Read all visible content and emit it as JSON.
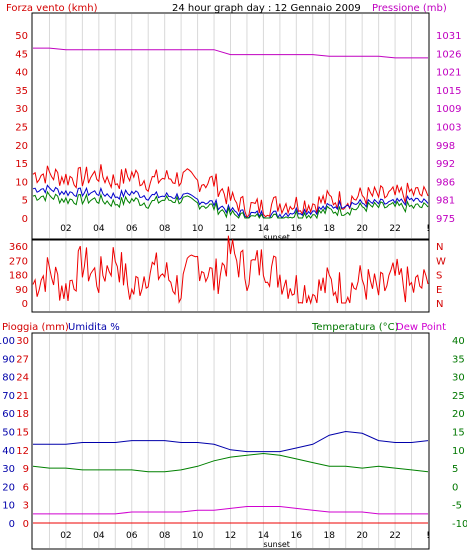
{
  "header": {
    "left_title": "Forza vento (kmh)",
    "center_title": "24 hour graph day : 12 Gennaio 2009",
    "right_title": "Pressione (mb)"
  },
  "x_axis": {
    "tick_labels": [
      "02",
      "04",
      "06",
      "08",
      "10",
      "12",
      "14",
      "16",
      "18",
      "20",
      "22",
      "!"
    ],
    "sunset_label": "sunset"
  },
  "colors": {
    "wind_axis": "#d40000",
    "pressure_axis": "#c000c0",
    "wind_speed": "#ee0000",
    "gust": "#0000cc",
    "avg": "#008000",
    "rain_axis": "#d40000",
    "humidity_axis": "#0000aa",
    "temp_axis": "#007700",
    "dew": "#d000d0",
    "grid": "#d9d9d9"
  },
  "panel_wind": {
    "left_ticks": [
      "50",
      "45",
      "40",
      "35",
      "30",
      "25",
      "20",
      "15",
      "10",
      "5",
      "0"
    ],
    "right_ticks": [
      "1031",
      "1026",
      "1021",
      "1015",
      "1009",
      "1003",
      "998",
      "992",
      "986",
      "981",
      "975"
    ]
  },
  "panel_dir": {
    "left_ticks": [
      "360",
      "270",
      "180",
      "90",
      "0"
    ],
    "right_ticks": [
      "N",
      "W",
      "S",
      "E",
      "N"
    ]
  },
  "panel_temp": {
    "left_label_rain": "Pioggia (mm)",
    "left_label_humidity": "Umidita %",
    "right_label_temp": "Temperatura (°C)",
    "right_label_dew": "Dew Point",
    "rain_ticks": [
      "30",
      "27",
      "24",
      "21",
      "18",
      "15",
      "12",
      "9",
      "6",
      "3",
      "0"
    ],
    "humidity_ticks": [
      "100",
      "90",
      "80",
      "70",
      "60",
      "50",
      "40",
      "30",
      "20",
      "10",
      "0"
    ],
    "temp_ticks": [
      "40",
      "35",
      "30",
      "25",
      "20",
      "15",
      "10",
      "5",
      "0",
      "-5",
      "-10"
    ]
  },
  "chart_data": [
    {
      "type": "line",
      "title": "24 hour graph day : 12 Gennaio 2009",
      "ylabel": "Forza vento (kmh)",
      "y2label": "Pressione (mb)",
      "x_hours": [
        0,
        1,
        2,
        3,
        4,
        5,
        6,
        7,
        8,
        9,
        10,
        11,
        12,
        13,
        14,
        15,
        16,
        17,
        18,
        19,
        20,
        21,
        22,
        23,
        24
      ],
      "ylim": [
        0,
        50
      ],
      "y2lim": [
        975,
        1031
      ],
      "grid": true,
      "series": [
        {
          "axis": "left",
          "values": [
            12,
            12,
            11,
            11,
            12,
            10,
            12,
            10,
            11,
            11,
            10,
            10,
            5,
            3,
            3,
            4,
            4,
            4,
            5,
            5,
            6,
            6,
            6,
            7,
            6
          ]
        },
        {
          "axis": "left",
          "values": [
            8,
            8,
            7,
            7,
            7,
            6,
            7,
            6,
            6,
            6,
            5,
            4,
            2,
            1,
            1,
            1,
            2,
            2,
            3,
            4,
            4,
            4,
            4,
            5,
            4
          ]
        },
        {
          "axis": "left",
          "values": [
            6,
            6,
            5,
            5,
            5,
            4,
            5,
            4,
            5,
            5,
            4,
            3,
            1,
            0,
            0,
            0,
            1,
            1,
            2,
            2,
            3,
            3,
            3,
            3,
            3
          ]
        },
        {
          "axis": "right",
          "values": [
            1027,
            1027,
            1026.5,
            1026.5,
            1026.5,
            1026.5,
            1026.5,
            1026.5,
            1026.5,
            1026.5,
            1026.5,
            1026.5,
            1025,
            1025,
            1025,
            1025,
            1025,
            1025,
            1024.5,
            1024.5,
            1024.5,
            1024.5,
            1024,
            1024,
            1024
          ]
        }
      ]
    },
    {
      "type": "line",
      "ylabel": "",
      "ylim": [
        0,
        360
      ],
      "x_hours": [
        0,
        1,
        2,
        3,
        4,
        5,
        6,
        7,
        8,
        9,
        10,
        11,
        12,
        13,
        14,
        15,
        16,
        17,
        18,
        19,
        20,
        21,
        22,
        23,
        24
      ],
      "series": [
        {
          "values": [
            120,
            200,
            80,
            260,
            150,
            300,
            60,
            220,
            180,
            90,
            280,
            140,
            320,
            200,
            260,
            180,
            100,
            60,
            120,
            80,
            140,
            60,
            160,
            90,
            120
          ]
        }
      ]
    },
    {
      "type": "line",
      "ylabel": "",
      "x_hours": [
        0,
        1,
        2,
        3,
        4,
        5,
        6,
        7,
        8,
        9,
        10,
        11,
        12,
        13,
        14,
        15,
        16,
        17,
        18,
        19,
        20,
        21,
        22,
        23,
        24
      ],
      "series": [
        {
          "axis": "humidity",
          "ylim": [
            0,
            100
          ],
          "values": [
            43,
            43,
            43,
            44,
            44,
            44,
            45,
            45,
            45,
            44,
            44,
            43,
            40,
            39,
            39,
            39,
            41,
            43,
            48,
            50,
            49,
            45,
            44,
            44,
            45
          ]
        },
        {
          "axis": "temperature",
          "ylim": [
            -10,
            40
          ],
          "values": [
            5.5,
            5,
            5,
            4.5,
            4.5,
            4.5,
            4.5,
            4,
            4,
            4.5,
            5.5,
            7,
            8,
            8.5,
            9,
            8.5,
            7.5,
            6.5,
            5.5,
            5.5,
            5,
            5.5,
            5,
            4.5,
            4
          ]
        },
        {
          "axis": "temperature",
          "ylim": [
            -10,
            40
          ],
          "values": [
            -7.5,
            -7.5,
            -7.5,
            -7.5,
            -7.5,
            -7.5,
            -7,
            -7,
            -7,
            -7,
            -6.5,
            -6.5,
            -6,
            -5.5,
            -5.5,
            -5.5,
            -6,
            -6.5,
            -7,
            -7,
            -7,
            -7.5,
            -7.5,
            -7.5,
            -7.5
          ]
        },
        {
          "axis": "rain",
          "ylim": [
            0,
            30
          ],
          "values": [
            0,
            0,
            0,
            0,
            0,
            0,
            0,
            0,
            0,
            0,
            0,
            0,
            0,
            0,
            0,
            0,
            0,
            0,
            0,
            0,
            0,
            0,
            0,
            0,
            0
          ]
        }
      ]
    }
  ]
}
